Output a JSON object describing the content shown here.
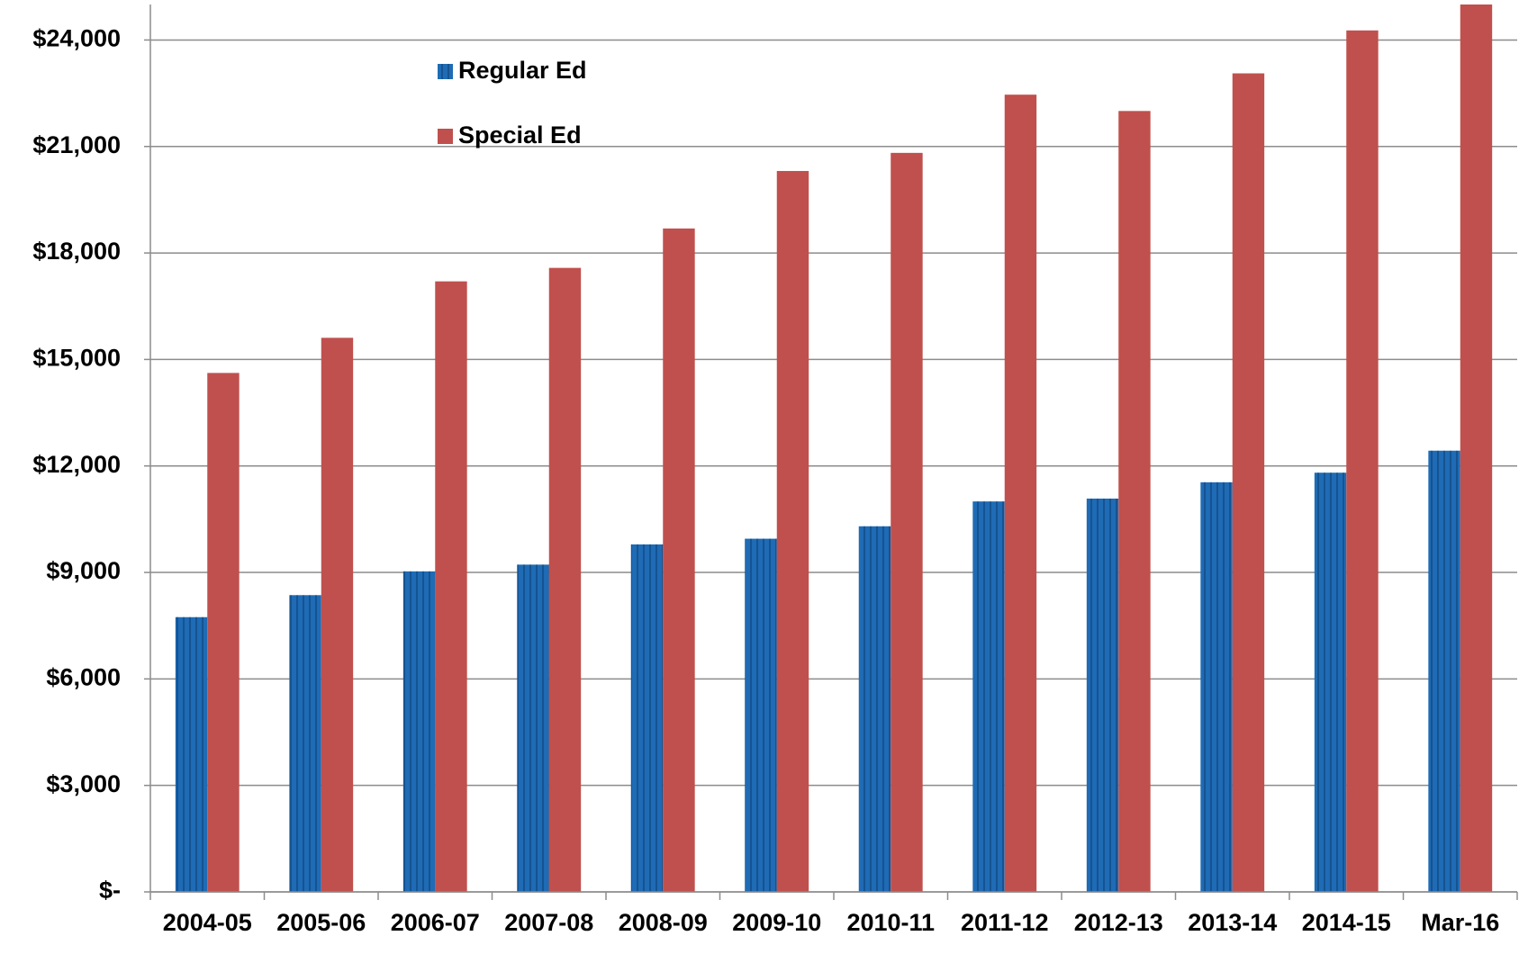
{
  "chart_data": {
    "type": "bar",
    "categories": [
      "2004-05",
      "2005-06",
      "2006-07",
      "2007-08",
      "2008-09",
      "2009-10",
      "2010-11",
      "2011-12",
      "2012-13",
      "2013-14",
      "2014-15",
      "Mar-16"
    ],
    "series": [
      {
        "name": "Regular Ed",
        "color": "#1f6bb5",
        "values": [
          7740,
          8360,
          9030,
          9220,
          9790,
          9950,
          10300,
          11000,
          11080,
          11540,
          11810,
          12430
        ]
      },
      {
        "name": "Special Ed",
        "color": "#c0504d",
        "values": [
          14620,
          15610,
          17200,
          17580,
          18690,
          20310,
          20820,
          22460,
          22000,
          23060,
          24270,
          25000
        ]
      }
    ],
    "ylim": [
      0,
      25000
    ],
    "yticks": [
      {
        "value": 0,
        "label": "$-"
      },
      {
        "value": 3000,
        "label": "$3,000"
      },
      {
        "value": 6000,
        "label": "$6,000"
      },
      {
        "value": 9000,
        "label": "$9,000"
      },
      {
        "value": 12000,
        "label": "$12,000"
      },
      {
        "value": 15000,
        "label": "$15,000"
      },
      {
        "value": 18000,
        "label": "$18,000"
      },
      {
        "value": 21000,
        "label": "$21,000"
      },
      {
        "value": 24000,
        "label": "$24,000"
      }
    ],
    "grid": true,
    "legend": "top-left"
  }
}
